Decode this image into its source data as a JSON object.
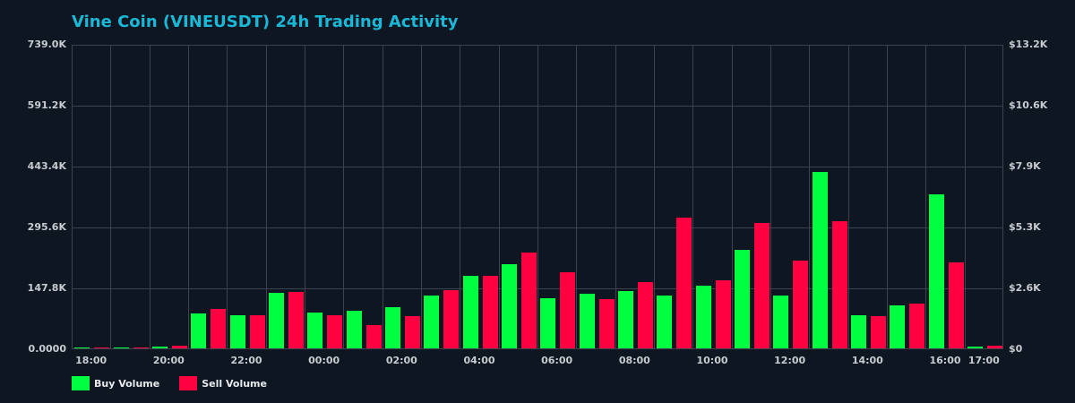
{
  "title": "Vine Coin (VINEUSDT) 24h Trading Activity",
  "colors": {
    "background": "#0d1621",
    "title": "#1ab8d6",
    "grid": "#3a434f",
    "buy": "#00ff41",
    "sell": "#ff0040",
    "tick": "#c8ccd1"
  },
  "y_axis_left": {
    "ticks": [
      "739.0K",
      "591.2K",
      "443.4K",
      "295.6K",
      "147.8K",
      "0.0000"
    ]
  },
  "y_axis_right": {
    "ticks": [
      "$13.2K",
      "$10.6K",
      "$7.9K",
      "$5.3K",
      "$2.6K",
      "$0"
    ]
  },
  "x_axis": {
    "ticks": [
      "18:00",
      "20:00",
      "22:00",
      "00:00",
      "02:00",
      "04:00",
      "06:00",
      "08:00",
      "10:00",
      "12:00",
      "14:00",
      "16:00",
      "17:00"
    ]
  },
  "legend": [
    {
      "label": "Buy Volume",
      "color": "#00ff41"
    },
    {
      "label": "Sell Volume",
      "color": "#ff0040"
    }
  ],
  "chart_data": {
    "type": "bar",
    "title": "Vine Coin (VINEUSDT) 24h Trading Activity",
    "xlabel": "",
    "ylabel": "",
    "ylim": [
      0,
      739000
    ],
    "y2lim": [
      0,
      13200
    ],
    "grid": true,
    "legend_position": "bottom-left",
    "categories": [
      "18:00",
      "19:00",
      "20:00",
      "21:00",
      "22:00",
      "23:00",
      "00:00",
      "01:00",
      "02:00",
      "03:00",
      "04:00",
      "05:00",
      "06:00",
      "07:00",
      "08:00",
      "09:00",
      "10:00",
      "11:00",
      "12:00",
      "13:00",
      "14:00",
      "15:00",
      "16:00",
      "17:00"
    ],
    "series": [
      {
        "name": "Buy Volume",
        "color": "#00ff41",
        "values": [
          2000,
          1500,
          4000,
          85000,
          80000,
          135000,
          87000,
          91000,
          100000,
          128000,
          178000,
          206000,
          122000,
          133000,
          141000,
          128000,
          154000,
          241000,
          128000,
          430000,
          80000,
          104000,
          376000,
          5000
        ]
      },
      {
        "name": "Sell Volume",
        "color": "#ff0040",
        "values": [
          1500,
          1500,
          6000,
          96000,
          80000,
          137000,
          80000,
          57000,
          78000,
          143000,
          178000,
          233000,
          185000,
          120000,
          161000,
          320000,
          167000,
          306000,
          215000,
          311000,
          78000,
          109000,
          209000,
          7000
        ]
      }
    ]
  }
}
